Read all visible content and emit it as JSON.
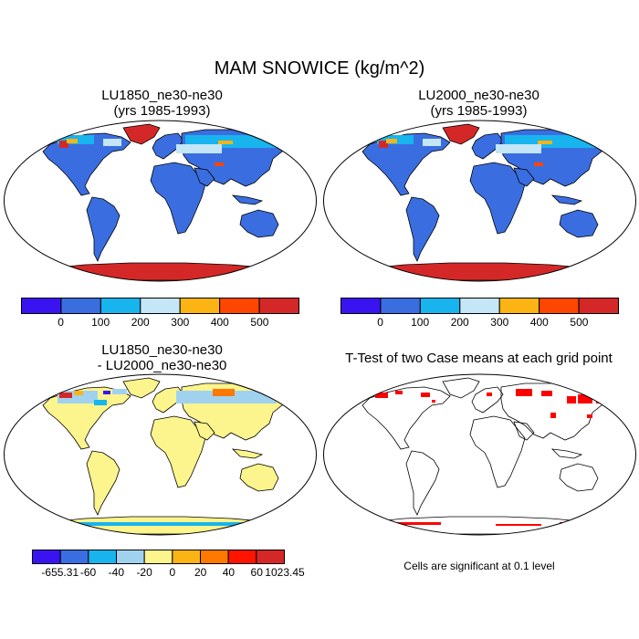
{
  "figure": {
    "title": "MAM SNOWICE (kg/m^2)",
    "significance_note": "Cells are significant at 0.1 level"
  },
  "panels": [
    {
      "id": "lu1850",
      "title_line1": "LU1850_ne30-ne30",
      "title_line2": "(yrs 1985-1993)"
    },
    {
      "id": "lu2000",
      "title_line1": "LU2000_ne30-ne30",
      "title_line2": "(yrs 1985-1993)"
    },
    {
      "id": "diff",
      "title_line1": "LU1850_ne30-ne30",
      "title_line2": "- LU2000_ne30-ne30"
    },
    {
      "id": "ttest",
      "title_line1": "T-Test of two Case means at each grid point",
      "title_line2": ""
    }
  ],
  "colorbars": {
    "abs": {
      "colors": [
        "#3a14f0",
        "#3a6ee0",
        "#18b4ee",
        "#c4e6f6",
        "#fcb414",
        "#ff4600",
        "#d42828"
      ],
      "labels": [
        "0",
        "100",
        "200",
        "300",
        "400",
        "500"
      ]
    },
    "diff": {
      "colors": [
        "#3a14f0",
        "#3a6ee0",
        "#18b4ee",
        "#a0d2f0",
        "#fcf48c",
        "#fcb414",
        "#ff7800",
        "#ff1400",
        "#d42828"
      ],
      "labels": [
        "-655.31",
        "-60",
        "-40",
        "-20",
        "0",
        "20",
        "40",
        "60",
        "1023.45"
      ]
    }
  },
  "map_colors": {
    "low_value_land": "#3a6ee0",
    "diff_neutral_land": "#fcf48c",
    "significant_cells": "#ff0000",
    "ice_sheet": "#d42828"
  }
}
